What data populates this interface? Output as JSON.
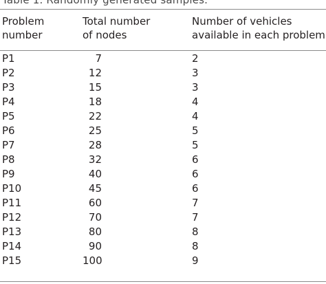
{
  "caption": "Table 1. Randomly generated samples.",
  "headers": {
    "problem_number": "Problem\nnumber",
    "total_nodes": "Total number\nof nodes",
    "vehicles": "Number of vehicles\navailable in each problem"
  },
  "rows": [
    {
      "problem": "P1",
      "nodes": "7",
      "vehicles": "2"
    },
    {
      "problem": "P2",
      "nodes": "12",
      "vehicles": "3"
    },
    {
      "problem": "P3",
      "nodes": "15",
      "vehicles": "3"
    },
    {
      "problem": "P4",
      "nodes": "18",
      "vehicles": "4"
    },
    {
      "problem": "P5",
      "nodes": "22",
      "vehicles": "4"
    },
    {
      "problem": "P6",
      "nodes": "25",
      "vehicles": "5"
    },
    {
      "problem": "P7",
      "nodes": "28",
      "vehicles": "5"
    },
    {
      "problem": "P8",
      "nodes": "32",
      "vehicles": "6"
    },
    {
      "problem": "P9",
      "nodes": "40",
      "vehicles": "6"
    },
    {
      "problem": "P10",
      "nodes": "45",
      "vehicles": "6"
    },
    {
      "problem": "P11",
      "nodes": "60",
      "vehicles": "7"
    },
    {
      "problem": "P12",
      "nodes": "70",
      "vehicles": "7"
    },
    {
      "problem": "P13",
      "nodes": "80",
      "vehicles": "8"
    },
    {
      "problem": "P14",
      "nodes": "90",
      "vehicles": "8"
    },
    {
      "problem": "P15",
      "nodes": "100",
      "vehicles": "9"
    }
  ]
}
